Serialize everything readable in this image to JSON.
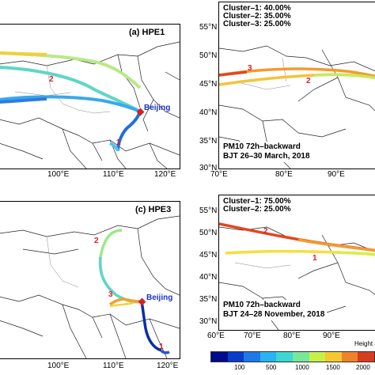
{
  "panels": {
    "a": {
      "title": "(a) HPE1",
      "x_ticks": [
        "100°E",
        "110°E",
        "120°E"
      ],
      "city": "Beijing",
      "cluster_ids": [
        "2",
        "1"
      ]
    },
    "b": {
      "clusters": [
        "Cluster–1: 40.00%",
        "Cluster–2: 35.00%",
        "Cluster–3: 25.00%"
      ],
      "y_ticks": [
        "55°N",
        "50°N",
        "45°N",
        "40°N",
        "35°N",
        "30°N"
      ],
      "x_ticks": [
        "70°E",
        "80°E",
        "90°E"
      ],
      "footnote_line1": "PM10  72h–backward",
      "footnote_line2": "BJT 26–30 March, 2018",
      "cluster_ids": [
        "3",
        "2"
      ]
    },
    "c": {
      "title": "(c) HPE3",
      "x_ticks": [
        "100°E",
        "110°E",
        "120°E"
      ],
      "city": "Beijing",
      "cluster_ids": [
        "2",
        "3",
        "1"
      ]
    },
    "d": {
      "clusters": [
        "Cluster–1: 75.00%",
        "Cluster–2: 25.00%"
      ],
      "y_ticks": [
        "55°N",
        "50°N",
        "45°N",
        "40°N",
        "35°N",
        "30°N"
      ],
      "x_ticks": [
        "60°E",
        "70°E",
        "80°E",
        "90°E"
      ],
      "footnote_line1": "PM10  72h–backward",
      "footnote_line2": "BJT 24–28 November, 2018",
      "cluster_ids": [
        "2",
        "1"
      ]
    }
  },
  "colorbar": {
    "title": "Height a",
    "ticks": [
      "100",
      "500",
      "1000",
      "1500",
      "2000"
    ],
    "colors": [
      "#000a8c",
      "#0a3cc8",
      "#1e78e6",
      "#28b4f0",
      "#3cd7d2",
      "#78e69b",
      "#c8f04b",
      "#f5c832",
      "#f08228",
      "#d73c1e"
    ]
  }
}
